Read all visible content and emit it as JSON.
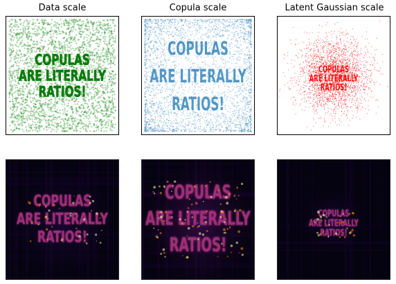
{
  "chart_data": [
    {
      "type": "scatter",
      "title": "Data scale",
      "point_color": "#008000",
      "point_shape": "plus",
      "embedded_text": [
        "COPULAS",
        "ARE LITERALLY",
        "RATIOS!"
      ]
    },
    {
      "type": "scatter",
      "title": "Copula scale",
      "point_color": "#1f77b4",
      "point_shape": "dot",
      "embedded_text": [
        "COPULAS",
        "ARE LITERALLY",
        "RATIOS!"
      ]
    },
    {
      "type": "scatter",
      "title": "Latent Gaussian scale",
      "point_color": "#ff0000",
      "point_shape": "dot",
      "embedded_text": [
        "COPULAS",
        "ARE LITERALLY",
        "RATIOS!"
      ]
    },
    {
      "type": "heatmap",
      "title": "",
      "colormap": "inferno",
      "embedded_text": [
        "COPULAS",
        "ARE LITERALLY",
        "RATIOS!"
      ]
    },
    {
      "type": "heatmap",
      "title": "",
      "colormap": "inferno",
      "embedded_text": [
        "COPULAS",
        "ARE LITERALLY",
        "RATIOS!"
      ]
    },
    {
      "type": "heatmap",
      "title": "",
      "colormap": "inferno",
      "embedded_text": [
        "COPULAS",
        "ARE LITERALLY",
        "RATIOS!"
      ]
    }
  ]
}
